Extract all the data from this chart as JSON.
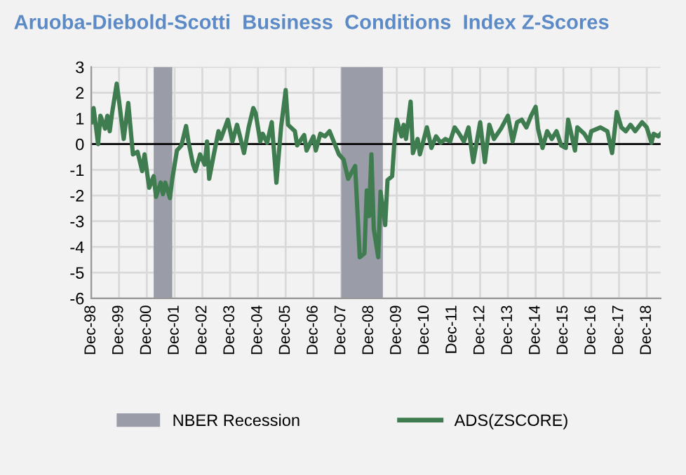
{
  "chart_data": {
    "type": "line",
    "title": "Aruoba-Diebold-Scotti  Business  Conditions  Index Z-Scores",
    "x": [
      "1998-12",
      "1999-01",
      "1999-03",
      "1999-04",
      "1999-06",
      "1999-07",
      "1999-08",
      "1999-09",
      "1999-11",
      "1999-12",
      "2000-02",
      "2000-04",
      "2000-06",
      "2000-08",
      "2000-10",
      "2000-11",
      "2001-01",
      "2001-03",
      "2001-04",
      "2001-06",
      "2001-07",
      "2001-08",
      "2001-10",
      "2001-11",
      "2002-01",
      "2002-03",
      "2002-05",
      "2002-06",
      "2002-08",
      "2002-09",
      "2002-11",
      "2003-01",
      "2003-02",
      "2003-03",
      "2003-05",
      "2003-07",
      "2003-08",
      "2003-11",
      "2004-01",
      "2004-03",
      "2004-04",
      "2004-06",
      "2004-08",
      "2004-10",
      "2004-11",
      "2005-01",
      "2005-02",
      "2005-04",
      "2005-06",
      "2005-08",
      "2005-10",
      "2005-12",
      "2006-01",
      "2006-04",
      "2006-05",
      "2006-08",
      "2006-09",
      "2006-12",
      "2007-01",
      "2007-03",
      "2007-05",
      "2007-07",
      "2007-11",
      "2008-01",
      "2008-03",
      "2008-06",
      "2008-08",
      "2008-10",
      "2008-11",
      "2008-12",
      "2009-01",
      "2009-02",
      "2009-04",
      "2009-05",
      "2009-07",
      "2009-08",
      "2009-10",
      "2009-11",
      "2009-12",
      "2010-02",
      "2010-03",
      "2010-04",
      "2010-06",
      "2010-07",
      "2010-09",
      "2010-10",
      "2011-01",
      "2011-03",
      "2011-05",
      "2011-07",
      "2011-09",
      "2011-11",
      "2012-01",
      "2012-03",
      "2012-05",
      "2012-07",
      "2012-09",
      "2012-12",
      "2013-02",
      "2013-04",
      "2013-06",
      "2013-09",
      "2013-12",
      "2014-02",
      "2014-04",
      "2014-06",
      "2014-08",
      "2014-10",
      "2014-12",
      "2015-01",
      "2015-03",
      "2015-05",
      "2015-07",
      "2015-09",
      "2015-11",
      "2016-01",
      "2016-02",
      "2016-05",
      "2016-06",
      "2016-09",
      "2016-11",
      "2016-12",
      "2017-04",
      "2017-07",
      "2017-09",
      "2017-11",
      "2018-01",
      "2018-03",
      "2018-05",
      "2018-07",
      "2018-10",
      "2018-12",
      "2019-02",
      "2019-03",
      "2019-05",
      "2019-06"
    ],
    "series": [
      {
        "name": "ADS(ZSCORE)",
        "color": "#3f7d50",
        "values": [
          0.85,
          1.4,
          0,
          1.1,
          0.6,
          1.1,
          0.5,
          1.2,
          2.35,
          1.7,
          0.2,
          1.6,
          -0.4,
          -0.3,
          -1.05,
          -0.4,
          -1.7,
          -1.25,
          -2.05,
          -1.5,
          -1.95,
          -1.5,
          -2.1,
          -1.35,
          -0.25,
          -0.05,
          0.7,
          0.1,
          -0.8,
          -1.05,
          -0.4,
          -0.8,
          0.1,
          -1.35,
          -0.4,
          0.5,
          0.2,
          0.95,
          0.1,
          0.75,
          0.4,
          -0.35,
          0.65,
          1.4,
          1.2,
          0.1,
          0.4,
          0.05,
          0.85,
          -1.5,
          0.65,
          2.1,
          0.75,
          0.5,
          -0.05,
          0.35,
          -0.25,
          0.3,
          -0.25,
          0.4,
          0.3,
          0.5,
          -0.4,
          -0.6,
          -1.35,
          -0.85,
          -4.4,
          -4.25,
          -1.8,
          -2.8,
          -0.4,
          -3.3,
          -4.4,
          -1.85,
          -3.15,
          -1.4,
          -1.25,
          0.15,
          0.95,
          0.3,
          0.75,
          0.2,
          1.65,
          -0.35,
          0.2,
          -0.4,
          0.65,
          -0.15,
          0.3,
          0.05,
          0.2,
          0.1,
          0.65,
          0.4,
          0.1,
          0.65,
          -0.7,
          0.85,
          -0.7,
          0.75,
          0.2,
          0.6,
          1.1,
          0.1,
          0.85,
          0.95,
          0.65,
          1.1,
          1.45,
          0.6,
          -0.15,
          0.5,
          0.2,
          0.5,
          -0.05,
          -0.15,
          0.95,
          -0.25,
          0.65,
          0.4,
          0.1,
          0.5,
          0.65,
          0.5,
          -0.35,
          1.25,
          0.65,
          0.5,
          0.75,
          0.5,
          0.85,
          0.65,
          0.05,
          0.4,
          0.3,
          0.4
        ]
      }
    ],
    "bands": [
      {
        "axis": "x",
        "from": "2001-03",
        "to": "2001-11",
        "label": "NBER Recession",
        "color": "#9a9ca8"
      },
      {
        "axis": "x",
        "from": "2007-12",
        "to": "2009-06",
        "color": "#9a9ca8"
      }
    ],
    "ref_lines": [
      {
        "axis": "y",
        "value": 0,
        "color": "#000000"
      }
    ],
    "xlim": [
      "1998-12",
      "2019-06"
    ],
    "xticks": [
      {
        "value": "1998-12",
        "label": "Dec-98"
      },
      {
        "value": "1999-12",
        "label": "Dec-99"
      },
      {
        "value": "2000-12",
        "label": "Dec-00"
      },
      {
        "value": "2001-12",
        "label": "Dec-01"
      },
      {
        "value": "2002-12",
        "label": "Dec-02"
      },
      {
        "value": "2003-12",
        "label": "Dec-03"
      },
      {
        "value": "2004-12",
        "label": "Dec-04"
      },
      {
        "value": "2005-12",
        "label": "Dec-05"
      },
      {
        "value": "2006-12",
        "label": "Dec-06"
      },
      {
        "value": "2007-12",
        "label": "Dec-07"
      },
      {
        "value": "2008-12",
        "label": "Dec-08"
      },
      {
        "value": "2009-12",
        "label": "Dec-09"
      },
      {
        "value": "2010-12",
        "label": "Dec-10"
      },
      {
        "value": "2011-12",
        "label": "Dec-11"
      },
      {
        "value": "2012-12",
        "label": "Dec-12"
      },
      {
        "value": "2013-12",
        "label": "Dec-13"
      },
      {
        "value": "2014-12",
        "label": "Dec-14"
      },
      {
        "value": "2015-12",
        "label": "Dec-15"
      },
      {
        "value": "2016-12",
        "label": "Dec-16"
      },
      {
        "value": "2017-12",
        "label": "Dec-17"
      },
      {
        "value": "2018-12",
        "label": "Dec-18"
      }
    ],
    "ylim": [
      -6,
      3
    ],
    "yticks": [
      -6,
      -5,
      -4,
      -3,
      -2,
      -1,
      0,
      1,
      2,
      3
    ],
    "grid": true,
    "legend": "bottom",
    "line_style": "solid",
    "marker": "none"
  }
}
